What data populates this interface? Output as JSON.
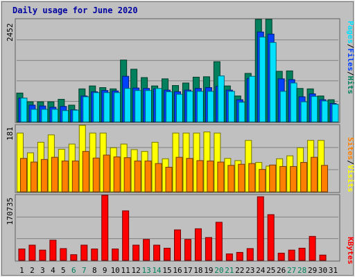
{
  "chart_data": {
    "type": "bar",
    "title": "Daily usage for June 2020",
    "colors": {
      "background": "#c0c0c0",
      "title": "#0000a0",
      "hits": "#00805c",
      "files": "#0040ff",
      "pages": "#00e0ff",
      "visits": "#ffff00",
      "sites": "#ff8000",
      "kbytes": "#ff0000",
      "weekend_label": "#00805c",
      "weekday_label": "#000000"
    },
    "categories": [
      "1",
      "2",
      "3",
      "4",
      "5",
      "6",
      "7",
      "8",
      "9",
      "10",
      "11",
      "12",
      "13",
      "14",
      "15",
      "16",
      "17",
      "18",
      "19",
      "20",
      "21",
      "22",
      "23",
      "24",
      "25",
      "26",
      "27",
      "28",
      "29",
      "30",
      "31"
    ],
    "weekend_days": [
      "6",
      "7",
      "13",
      "14",
      "20",
      "21",
      "27",
      "28"
    ],
    "panels": [
      {
        "id": "hits-files-pages",
        "ymax_label": "2452",
        "ylim": [
          0,
          2452
        ],
        "legend": [
          {
            "text": "Pages",
            "color": "#00e0ff"
          },
          {
            "text": "Files",
            "color": "#0040ff"
          },
          {
            "text": "Hits",
            "color": "#00805c"
          }
        ],
        "series": [
          {
            "name": "Hits",
            "values": [
              690,
              480,
              480,
              480,
              540,
              400,
              790,
              860,
              820,
              790,
              1480,
              1260,
              1060,
              860,
              1030,
              870,
              930,
              1070,
              1080,
              1440,
              860,
              620,
              1160,
              2452,
              2452,
              1210,
              1220,
              800,
              790,
              620,
              530
            ]
          },
          {
            "name": "Files",
            "values": [
              570,
              400,
              380,
              350,
              370,
              290,
              620,
              720,
              750,
              740,
              1090,
              810,
              800,
              790,
              760,
              720,
              760,
              800,
              820,
              850,
              760,
              530,
              1040,
              2150,
              2100,
              1030,
              1010,
              600,
              670,
              530,
              440
            ]
          },
          {
            "name": "Pages",
            "values": [
              570,
              300,
              300,
              300,
              270,
              280,
              600,
              700,
              700,
              700,
              800,
              750,
              750,
              800,
              720,
              660,
              730,
              730,
              730,
              1100,
              730,
              470,
              1090,
              2030,
              1900,
              730,
              930,
              480,
              610,
              500,
              420
            ]
          }
        ]
      },
      {
        "id": "visits-sites",
        "ymax_label": "181",
        "ylim": [
          0,
          181
        ],
        "legend": [
          {
            "text": "Sites",
            "color": "#ff8000"
          },
          {
            "text": "Visits",
            "color": "#ffff00"
          }
        ],
        "series": [
          {
            "name": "Visits",
            "values": [
              160,
              106,
              135,
              155,
              116,
              130,
              181,
              160,
              160,
              120,
              130,
              115,
              110,
              135,
              90,
              160,
              160,
              160,
              163,
              160,
              91,
              85,
              140,
              80,
              70,
              90,
              98,
              120,
              140,
              140,
              0
            ]
          },
          {
            "name": "Sites",
            "values": [
              91,
              81,
              88,
              94,
              84,
              84,
              110,
              92,
              100,
              95,
              93,
              84,
              84,
              77,
              67,
              94,
              91,
              85,
              84,
              81,
              72,
              75,
              77,
              61,
              73,
              69,
              69,
              80,
              94,
              72,
              0
            ]
          }
        ]
      },
      {
        "id": "kbytes",
        "ymax_label": "170735",
        "ylim": [
          0,
          170735
        ],
        "legend": [
          {
            "text": "KBytes",
            "color": "#ff0000"
          }
        ],
        "series": [
          {
            "name": "KBytes",
            "values": [
              30000,
              40000,
              27000,
              53000,
              31000,
              15000,
              40000,
              30000,
              170735,
              30000,
              130000,
              40000,
              55000,
              40000,
              32000,
              80000,
              55000,
              83000,
              60000,
              100000,
              17000,
              21000,
              31000,
              167000,
              120000,
              19000,
              27000,
              32000,
              63000,
              14000,
              0
            ]
          }
        ]
      }
    ]
  }
}
